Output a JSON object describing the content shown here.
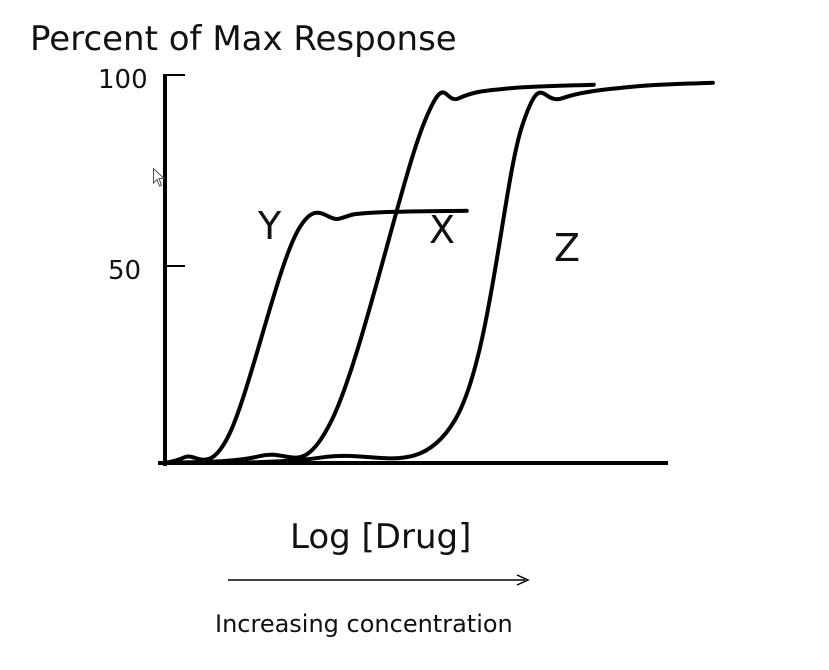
{
  "chart_data": {
    "type": "line",
    "ylabel": "Percent of Max Response",
    "xlabel": "Log [Drug]",
    "y_ticks": [
      "100",
      "50"
    ],
    "ylim": [
      0,
      100
    ],
    "arrow_caption": "Increasing concentration",
    "series": [
      {
        "name": "Y",
        "points": [
          [
            0.0,
            0
          ],
          [
            0.25,
            1.5
          ],
          [
            0.8,
            7
          ],
          [
            1.65,
            59
          ],
          [
            2.2,
            63
          ],
          [
            2.6,
            64.5
          ],
          [
            3.8,
            65
          ]
        ]
      },
      {
        "name": "X",
        "points": [
          [
            0.0,
            0
          ],
          [
            1.2,
            1.8
          ],
          [
            2.1,
            11
          ],
          [
            3.25,
            87
          ],
          [
            3.7,
            94
          ],
          [
            4.3,
            96.5
          ],
          [
            5.4,
            97.5
          ]
        ]
      },
      {
        "name": "Z",
        "points": [
          [
            0.0,
            0
          ],
          [
            2.0,
            1.5
          ],
          [
            3.65,
            11
          ],
          [
            4.5,
            87
          ],
          [
            5.0,
            94
          ],
          [
            5.9,
            97
          ],
          [
            6.9,
            98
          ]
        ]
      }
    ]
  },
  "colors": {
    "line": "#000000",
    "text": "#111111"
  },
  "cursor_icon": "mouse-pointer-icon"
}
